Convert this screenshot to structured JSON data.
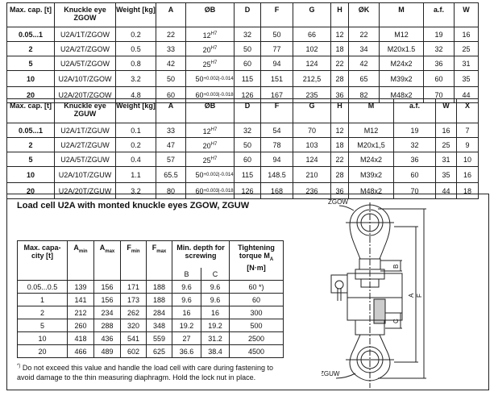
{
  "table_zgow": {
    "headers": [
      "Max. cap. [t]",
      "Knuckle eye ZGOW",
      "Weight [kg]",
      "A",
      "ØB",
      "D",
      "F",
      "G",
      "H",
      "ØK",
      "M",
      "a.f.",
      "W"
    ],
    "rows": [
      [
        "0.05...1",
        "U2A/1T/ZGOW",
        "0.2",
        "22",
        "12",
        "H7",
        "32",
        "50",
        "66",
        "12",
        "22",
        "M12",
        "19",
        "16"
      ],
      [
        "2",
        "U2A/2T/ZGOW",
        "0.5",
        "33",
        "20",
        "H7",
        "50",
        "77",
        "102",
        "18",
        "34",
        "M20x1.5",
        "32",
        "25"
      ],
      [
        "5",
        "U2A/5T/ZGOW",
        "0.8",
        "42",
        "25",
        "H7",
        "60",
        "94",
        "124",
        "22",
        "42",
        "M24x2",
        "36",
        "31"
      ],
      [
        "10",
        "U2A/10T/ZGOW",
        "3.2",
        "50",
        "50",
        "+0.002|-0.014",
        "115",
        "151",
        "212,5",
        "28",
        "65",
        "M39x2",
        "60",
        "35"
      ],
      [
        "20",
        "U2A/20T/ZGOW",
        "4.8",
        "60",
        "60",
        "+0.003|-0.018",
        "126",
        "167",
        "235",
        "36",
        "82",
        "M48x2",
        "70",
        "44"
      ]
    ]
  },
  "table_zguw": {
    "headers": [
      "Max. cap. [t]",
      "Knuckle eye ZGUW",
      "Weight [kg]",
      "A",
      "ØB",
      "D",
      "F",
      "G",
      "H",
      "M",
      "a.f.",
      "W",
      "X"
    ],
    "rows": [
      [
        "0.05...1",
        "U2A/1T/ZGUW",
        "0.1",
        "33",
        "12",
        "H7",
        "32",
        "54",
        "70",
        "12",
        "M12",
        "19",
        "16",
        "7"
      ],
      [
        "2",
        "U2A/2T/ZGUW",
        "0.2",
        "47",
        "20",
        "H7",
        "50",
        "78",
        "103",
        "18",
        "M20x1,5",
        "32",
        "25",
        "9"
      ],
      [
        "5",
        "U2A/5T/ZGUW",
        "0.4",
        "57",
        "25",
        "H7",
        "60",
        "94",
        "124",
        "22",
        "M24x2",
        "36",
        "31",
        "10"
      ],
      [
        "10",
        "U2A/10T/ZGUW",
        "1.1",
        "65.5",
        "50",
        "+0.002|-0.014",
        "115",
        "148.5",
        "210",
        "28",
        "M39x2",
        "60",
        "35",
        "16"
      ],
      [
        "20",
        "U2A/20T/ZGUW",
        "3.2",
        "80",
        "60",
        "+0.003|-0.018",
        "126",
        "168",
        "236",
        "36",
        "M48x2",
        "70",
        "44",
        "18"
      ]
    ]
  },
  "assembly": {
    "title": "Load cell U2A with monted knuckle eyes ZGOW, ZGUW",
    "headers": {
      "cap": "Max. capa-city [t]",
      "amin": "A",
      "amin_sub": "min",
      "amax": "A",
      "amax_sub": "max",
      "fmin": "F",
      "fmin_sub": "min",
      "fmax": "F",
      "fmax_sub": "max",
      "depth": "Min. depth for screwing",
      "b": "B",
      "c": "C",
      "torque": "Tightening torque M",
      "torque_sub": "A",
      "torque_unit": "[N·m]"
    },
    "rows": [
      [
        "0.05...0.5",
        "139",
        "156",
        "171",
        "188",
        "9.6",
        "9.6",
        "60 *)"
      ],
      [
        "1",
        "141",
        "156",
        "173",
        "188",
        "9.6",
        "9.6",
        "60"
      ],
      [
        "2",
        "212",
        "234",
        "262",
        "284",
        "16",
        "16",
        "300"
      ],
      [
        "5",
        "260",
        "288",
        "320",
        "348",
        "19.2",
        "19.2",
        "500"
      ],
      [
        "10",
        "418",
        "436",
        "541",
        "559",
        "27",
        "31.2",
        "2500"
      ],
      [
        "20",
        "466",
        "489",
        "602",
        "625",
        "36.6",
        "38.4",
        "4500"
      ]
    ],
    "footnote_mark": "*)",
    "footnote": "Do not exceed this value and handle the load cell with care during fastening to avoid damage to the thin measuring diaphragm. Hold the lock nut in place."
  },
  "diagram": {
    "label_top": "ZGOW",
    "label_bottom": "ZGUW",
    "dim_a": "A",
    "dim_f": "F",
    "dim_b": "B",
    "dim_c": "C"
  }
}
